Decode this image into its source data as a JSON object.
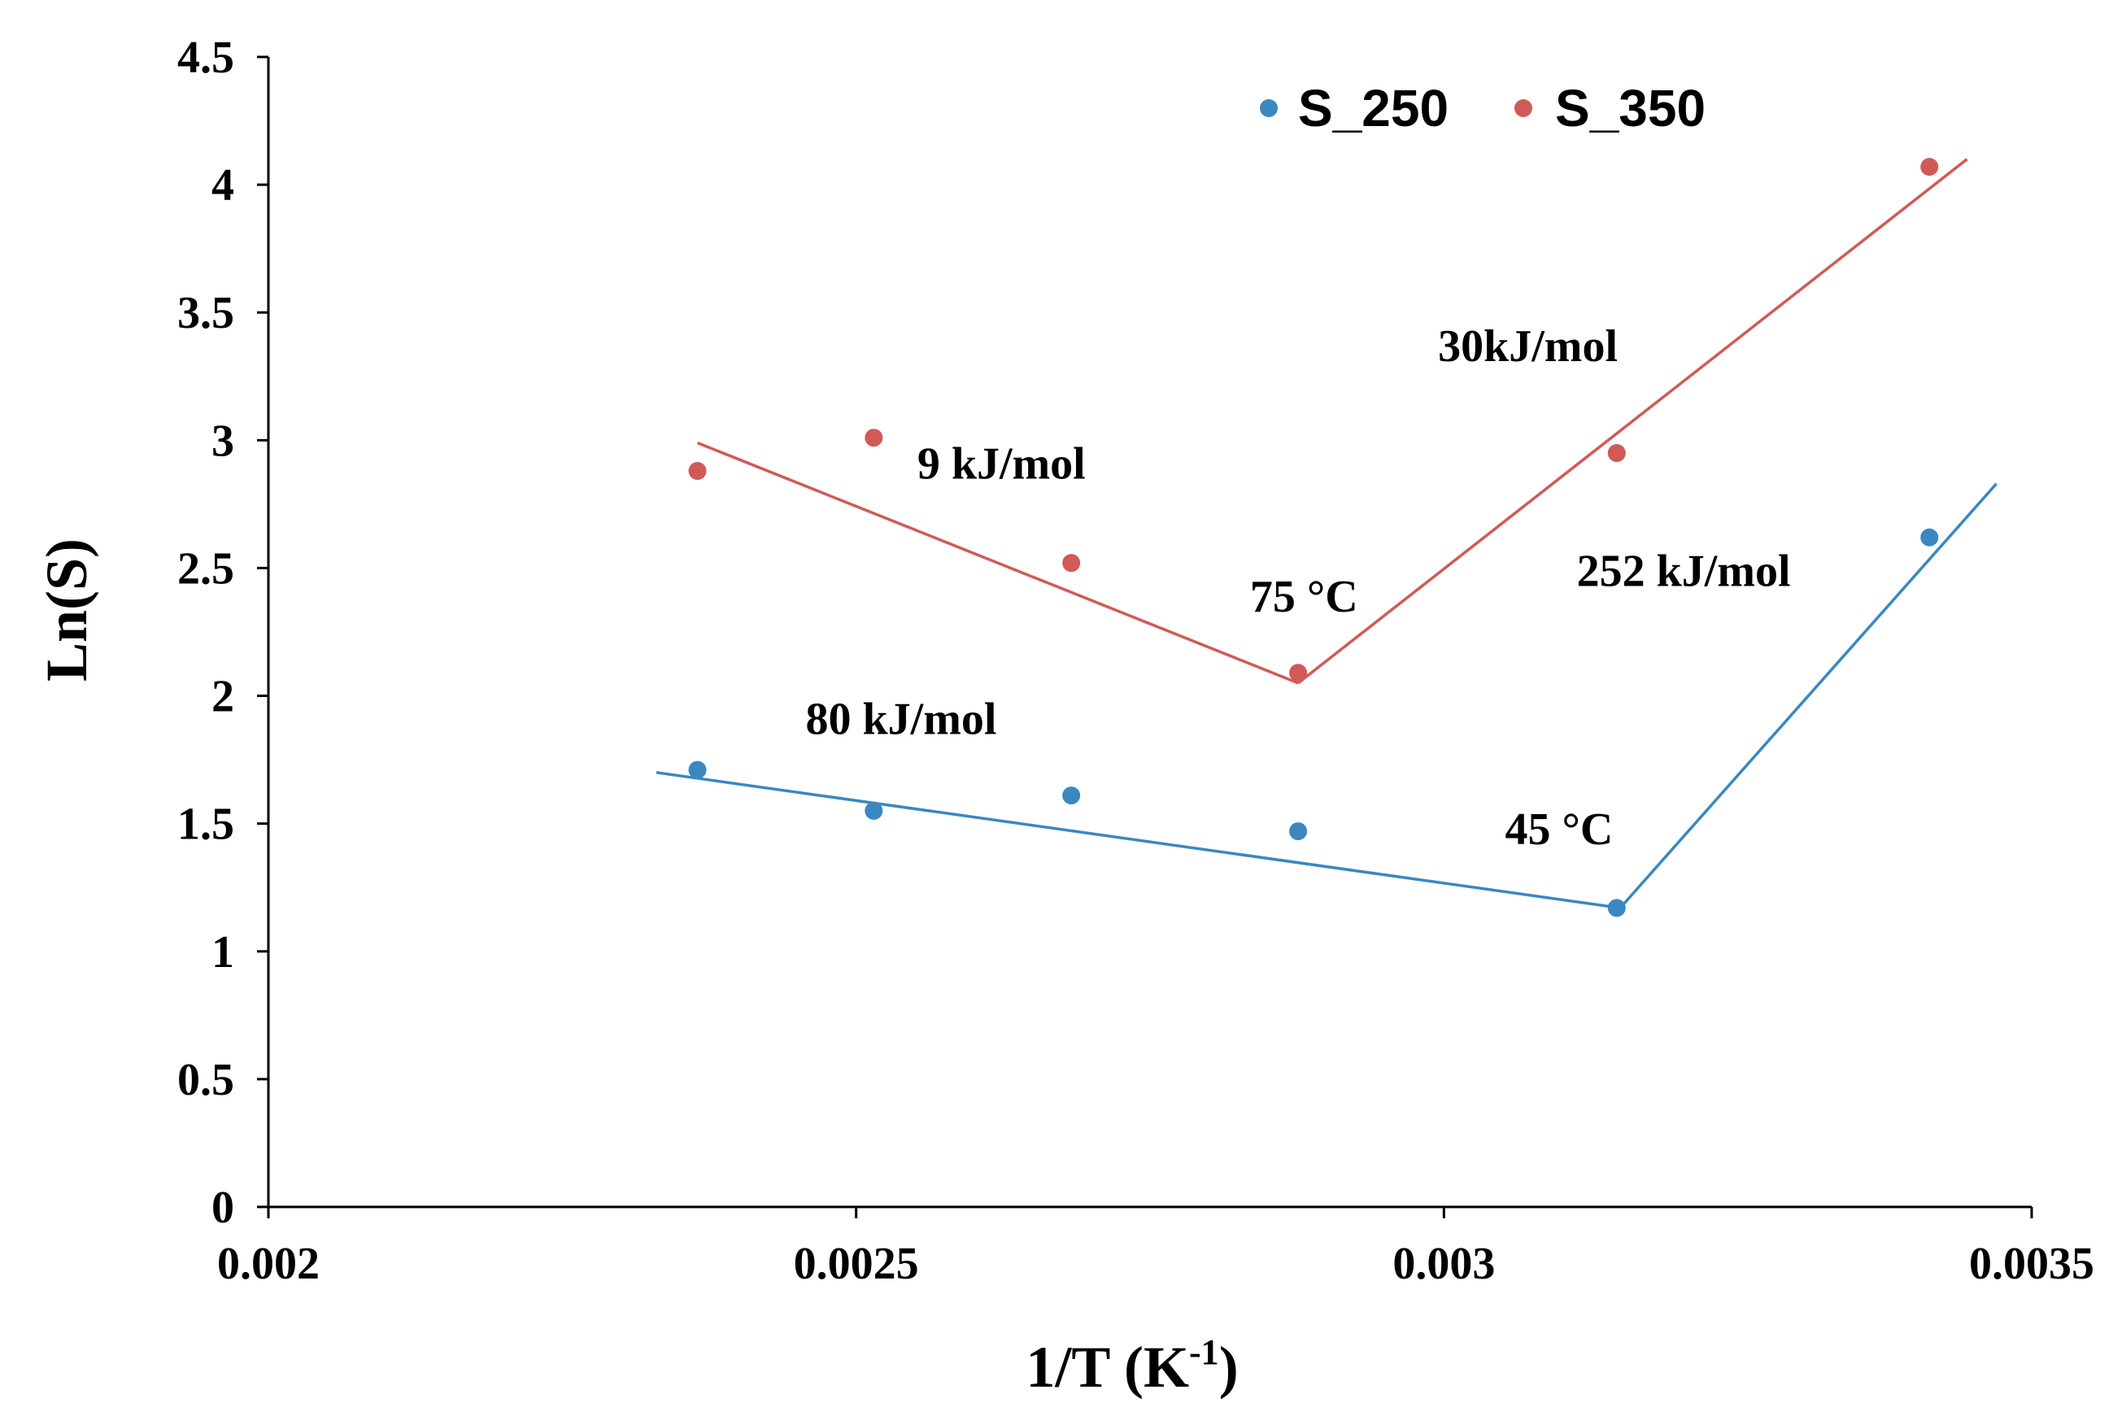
{
  "chart_data": {
    "type": "scatter",
    "title": "",
    "xlabel": "1/T (K",
    "xlabel_sup": "-1",
    "xlabel_end": ")",
    "ylabel": "Ln(S)",
    "xlim": [
      0.002,
      0.0035
    ],
    "ylim": [
      0,
      4.5
    ],
    "x_ticks": [
      0.002,
      0.0025,
      0.003,
      0.0035
    ],
    "x_tick_labels": [
      "0.002",
      "0.0025",
      "0.003",
      "0.0035"
    ],
    "y_ticks": [
      0,
      0.5,
      1,
      1.5,
      2,
      2.5,
      3,
      3.5,
      4,
      4.5
    ],
    "y_tick_labels": [
      "0",
      "0.5",
      "1",
      "1.5",
      "2",
      "2.5",
      "3",
      "3.5",
      "4",
      "4.5"
    ],
    "grid": false,
    "legend_position": "top-right",
    "series": [
      {
        "name": "S_250",
        "color": "#3a87c2",
        "x": [
          0.002365,
          0.002515,
          0.002683,
          0.002876,
          0.003147,
          0.003413
        ],
        "y": [
          1.71,
          1.55,
          1.61,
          1.47,
          1.17,
          2.62
        ],
        "fit_lines": [
          {
            "x": [
              0.00233,
              0.00315
            ],
            "y": [
              1.7,
              1.17
            ]
          },
          {
            "x": [
              0.00315,
              0.00347
            ],
            "y": [
              1.17,
              2.83
            ]
          }
        ]
      },
      {
        "name": "S_350",
        "color": "#d05a57",
        "x": [
          0.002365,
          0.002515,
          0.002683,
          0.002876,
          0.003147,
          0.003413
        ],
        "y": [
          2.88,
          3.01,
          2.52,
          2.09,
          2.95,
          4.07
        ],
        "fit_lines": [
          {
            "x": [
              0.002365,
              0.002876
            ],
            "y": [
              2.99,
              2.05
            ]
          },
          {
            "x": [
              0.002876,
              0.003445
            ],
            "y": [
              2.05,
              4.1
            ]
          }
        ]
      }
    ],
    "annotations": [
      {
        "id": "ann-9kj",
        "text": "9 kJ/mol",
        "x": 0.002552,
        "y": 2.85
      },
      {
        "id": "ann-30kj",
        "text": "30kJ/mol",
        "x": 0.002995,
        "y": 3.31
      },
      {
        "id": "ann-75c",
        "text": "75 °C",
        "x": 0.002835,
        "y": 2.33
      },
      {
        "id": "ann-252kj",
        "text": "252 kJ/mol",
        "x": 0.003113,
        "y": 2.43
      },
      {
        "id": "ann-80kj",
        "text": "80 kJ/mol",
        "x": 0.002457,
        "y": 1.85
      },
      {
        "id": "ann-45c",
        "text": "45 °C",
        "x": 0.003052,
        "y": 1.42
      }
    ]
  }
}
